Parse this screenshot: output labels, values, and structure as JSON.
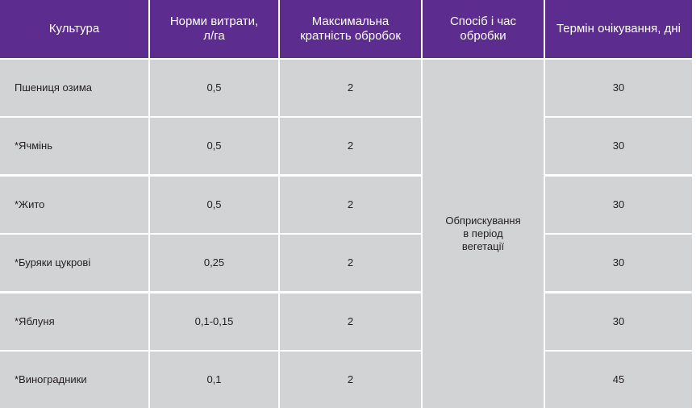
{
  "table": {
    "header": [
      [
        "Культура"
      ],
      [
        "Норми витрати,",
        "л/га"
      ],
      [
        "Максимальна",
        "кратність обробок"
      ],
      [
        "Спосіб і час",
        "обробки"
      ],
      [
        "Термін очікування, дні"
      ]
    ],
    "rows": [
      [
        "Пшениця озима",
        "0,5",
        "2",
        "30"
      ],
      [
        "*Ячмінь",
        "0,5",
        "2",
        "30"
      ],
      [
        "*Жито",
        "0,5",
        "2",
        "30"
      ],
      [
        "*Буряки цукрові",
        "0,25",
        "2",
        "30"
      ],
      [
        "*Яблуня",
        "0,1-0,15",
        "2",
        "30"
      ],
      [
        "*Виноградники",
        "0,1",
        "2",
        "45"
      ]
    ],
    "method": "Обприскування в період вегетації"
  }
}
